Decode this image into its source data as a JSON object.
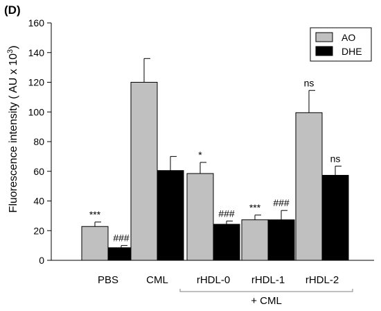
{
  "panel_label": "(D)",
  "colors": {
    "ao": "#c0c0c0",
    "dhe": "#000000",
    "axis": "#000000"
  },
  "chart_data": {
    "type": "bar",
    "title": "",
    "ylabel_main": "Fluorescence intensity ( AU x 10",
    "ylabel_sup": "3",
    "ylabel_end": ")",
    "ylim": [
      0,
      160
    ],
    "yticks": [
      0,
      20,
      40,
      60,
      80,
      100,
      120,
      140,
      160
    ],
    "categories": [
      "PBS",
      "CML",
      "rHDL-0",
      "rHDL-1",
      "rHDL-2"
    ],
    "group_label": "+ CML",
    "group_span": [
      "rHDL-0",
      "rHDL-2"
    ],
    "legend_position": "top-right",
    "series": [
      {
        "name": "AO",
        "color": "#c0c0c0",
        "values": [
          22.8,
          120,
          58.5,
          27.3,
          99.5
        ],
        "errors": [
          3.0,
          16.0,
          7.5,
          3.2,
          15.0
        ],
        "annotations": [
          "***",
          "",
          "*",
          "***",
          "ns"
        ]
      },
      {
        "name": "DHE",
        "color": "#000000",
        "values": [
          8.5,
          60.5,
          24.3,
          27.3,
          57.3
        ],
        "errors": [
          1.5,
          9.5,
          2.2,
          6.3,
          6.2
        ],
        "annotations": [
          "###",
          "",
          "###",
          "###",
          "ns"
        ]
      }
    ]
  }
}
